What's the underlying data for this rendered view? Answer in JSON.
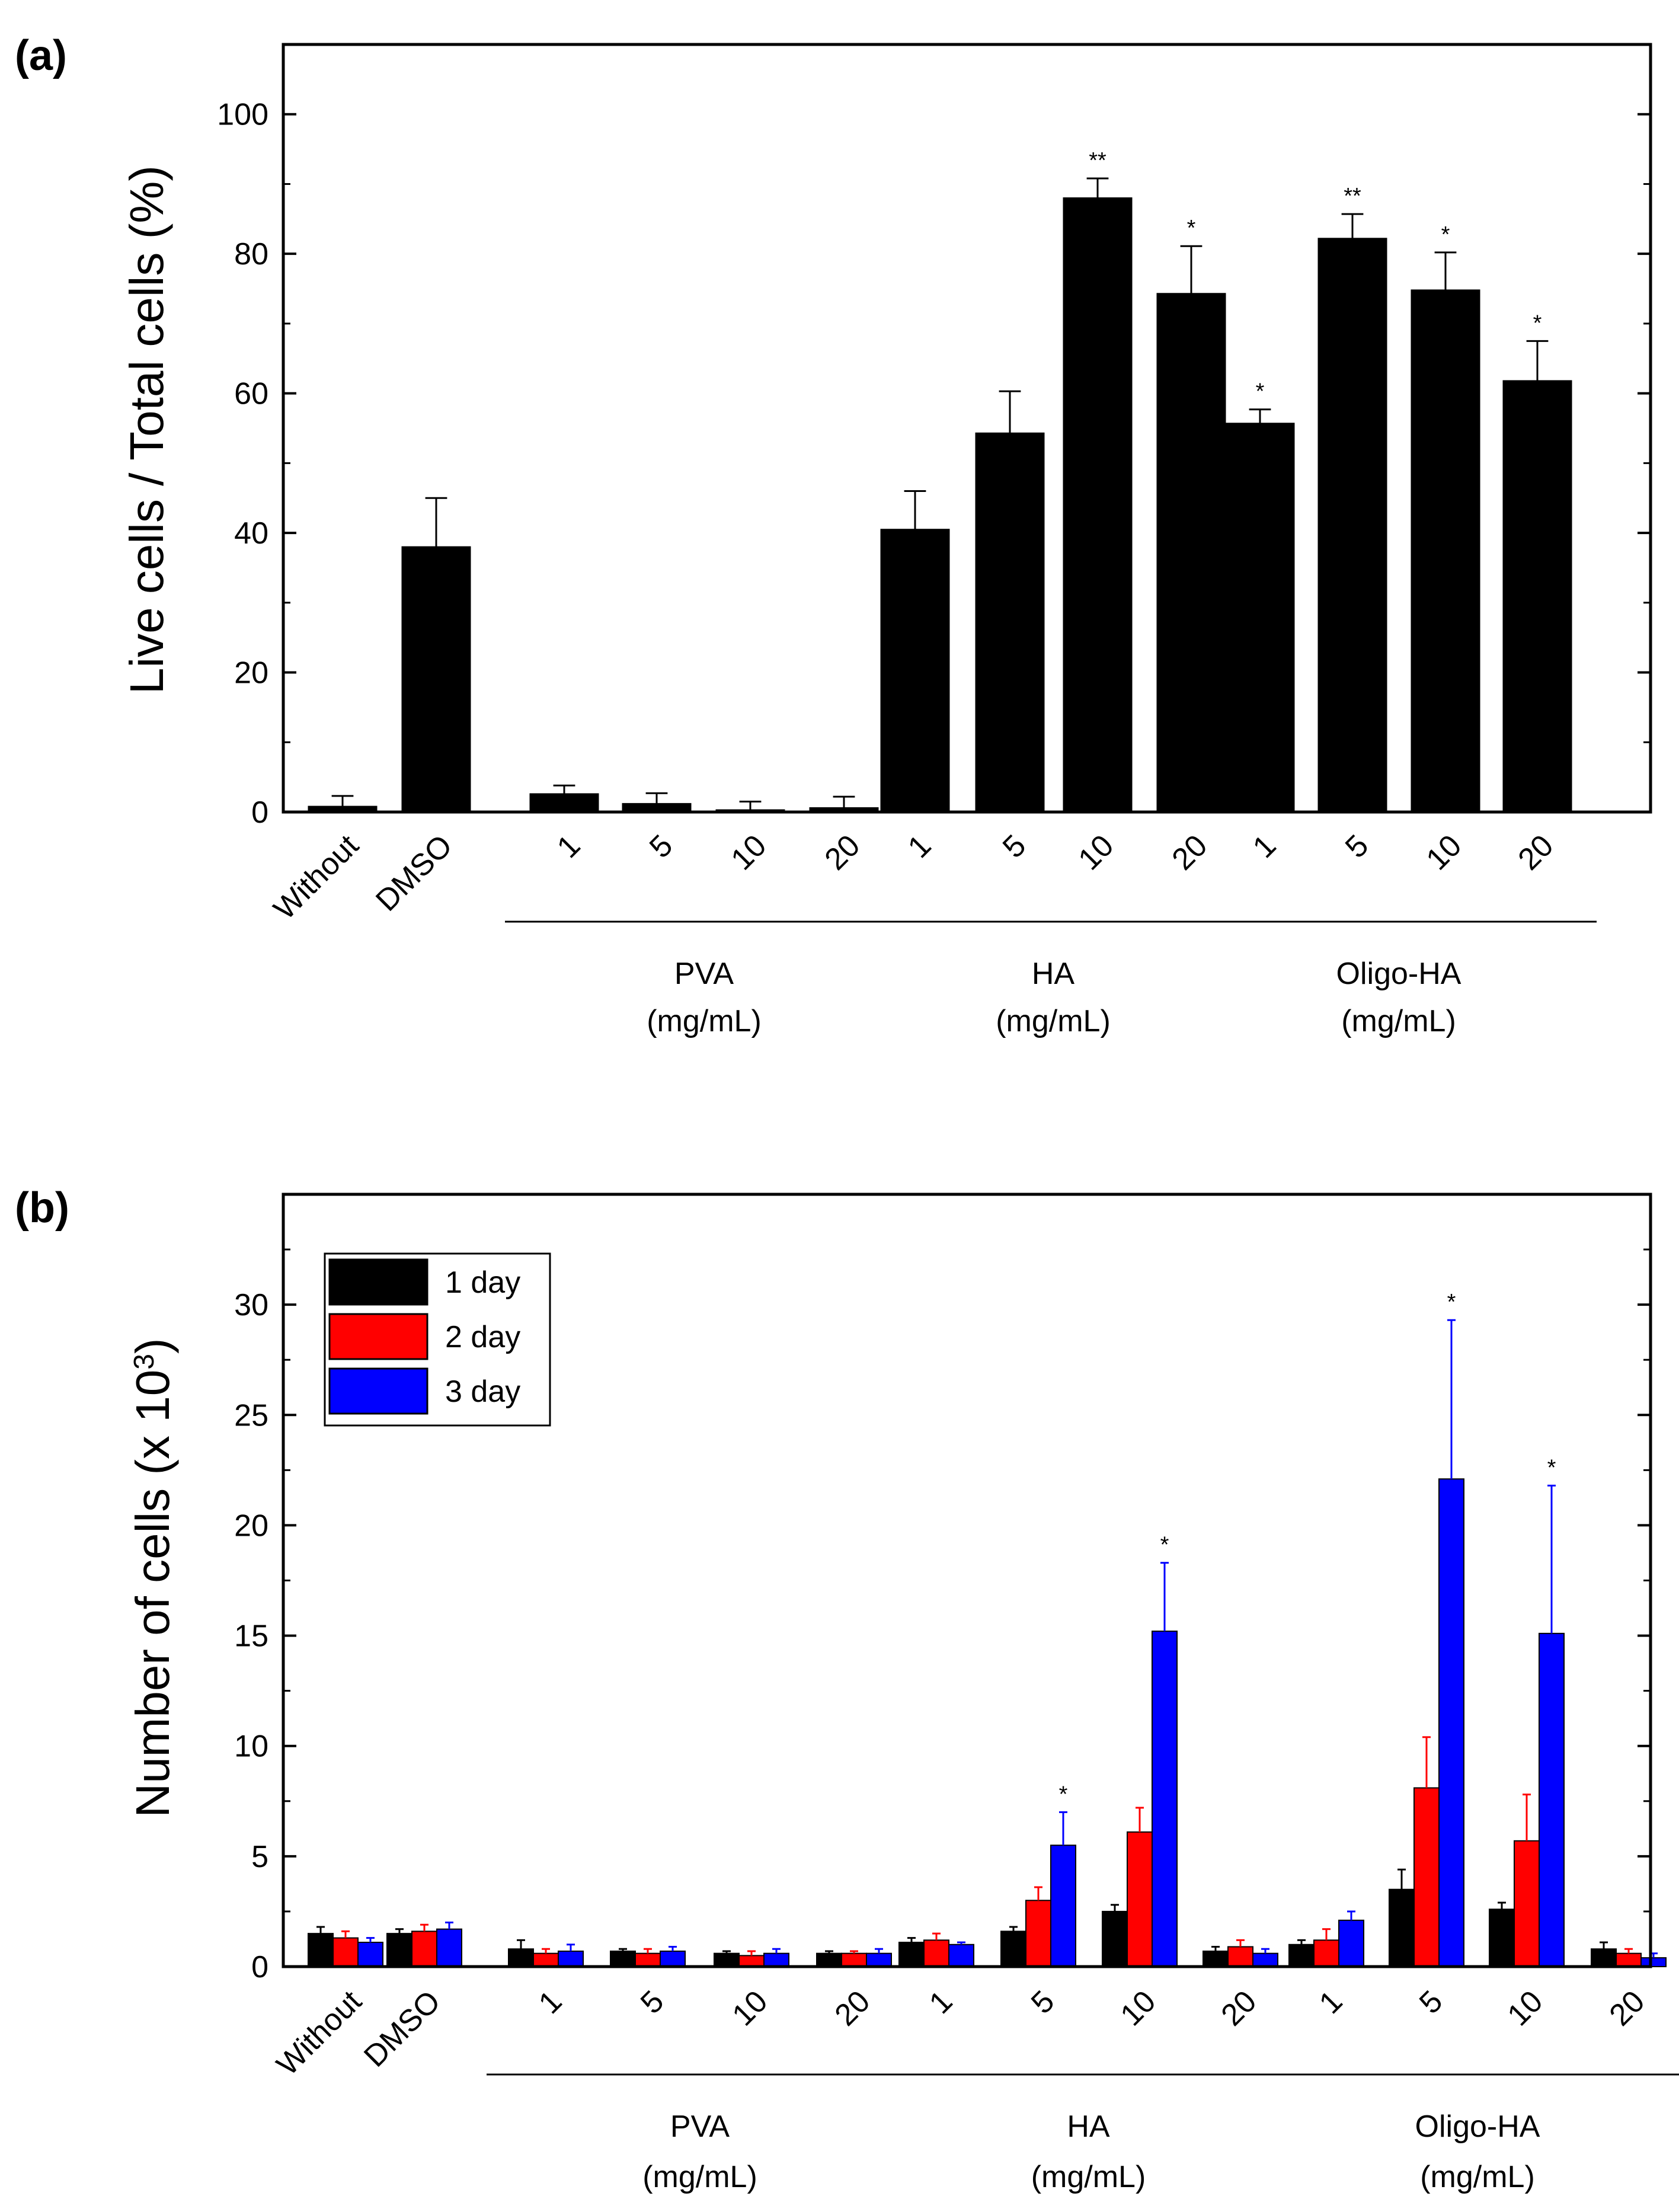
{
  "chart_data": [
    {
      "type": "bar",
      "panel_label": "(a)",
      "ylabel": "Live cells / Total cells (%)",
      "ylim": [
        0,
        110
      ],
      "yticks": [
        0,
        20,
        40,
        60,
        80,
        100
      ],
      "categories": [
        "Without",
        "DMSO",
        "1",
        "5",
        "10",
        "20",
        "1",
        "5",
        "10",
        "20",
        "1",
        "5",
        "10",
        "20"
      ],
      "groups": [
        {
          "name": "PVA",
          "unit": "(mg/mL)",
          "from": 2,
          "to": 5
        },
        {
          "name": "HA",
          "unit": "(mg/mL)",
          "from": 6,
          "to": 9
        },
        {
          "name": "Oligo-HA",
          "unit": "(mg/mL)",
          "from": 10,
          "to": 13
        }
      ],
      "series": [
        {
          "color": "#000000",
          "values": [
            0.8,
            38.0,
            2.6,
            1.2,
            0.3,
            0.6,
            40.5,
            54.3,
            88.0,
            74.3,
            55.7,
            82.2,
            74.8,
            61.8
          ],
          "errors": [
            1.5,
            7.0,
            1.2,
            1.5,
            1.2,
            1.6,
            5.5,
            6.0,
            2.8,
            6.8,
            2.0,
            3.5,
            5.4,
            5.7
          ],
          "annotations": [
            "",
            "",
            "",
            "",
            "",
            "",
            "",
            "",
            "**",
            "*",
            "*",
            "**",
            "*",
            "*"
          ]
        }
      ]
    },
    {
      "type": "bar",
      "panel_label": "(b)",
      "ylabel": "Number of cells (x 10",
      "ylabel_superscript": "3",
      "ylabel_suffix": ")",
      "ylim": [
        0,
        35
      ],
      "yticks": [
        0,
        5,
        10,
        15,
        20,
        25,
        30
      ],
      "categories": [
        "Without",
        "DMSO",
        "1",
        "5",
        "10",
        "20",
        "1",
        "5",
        "10",
        "20",
        "1",
        "5",
        "10",
        "20"
      ],
      "groups": [
        {
          "name": "PVA",
          "unit": "(mg/mL)",
          "from": 2,
          "to": 5
        },
        {
          "name": "HA",
          "unit": "(mg/mL)",
          "from": 6,
          "to": 9
        },
        {
          "name": "Oligo-HA",
          "unit": "(mg/mL)",
          "from": 10,
          "to": 13
        }
      ],
      "legend": {
        "position": "top-left"
      },
      "series": [
        {
          "name": "1 day",
          "color": "#000000",
          "values": [
            1.5,
            1.5,
            0.8,
            0.7,
            0.6,
            0.6,
            1.1,
            1.6,
            2.5,
            0.7,
            1.0,
            3.5,
            2.6,
            0.8
          ],
          "errors": [
            0.3,
            0.2,
            0.4,
            0.1,
            0.1,
            0.1,
            0.2,
            0.2,
            0.3,
            0.2,
            0.2,
            0.9,
            0.3,
            0.3
          ],
          "annotations": [
            "",
            "",
            "",
            "",
            "",
            "",
            "",
            "",
            "",
            "",
            "",
            "",
            "",
            ""
          ]
        },
        {
          "name": "2 day",
          "color": "#ff0000",
          "values": [
            1.3,
            1.6,
            0.6,
            0.6,
            0.5,
            0.6,
            1.2,
            3.0,
            6.1,
            0.9,
            1.2,
            8.1,
            5.7,
            0.6
          ],
          "errors": [
            0.3,
            0.3,
            0.2,
            0.2,
            0.2,
            0.1,
            0.3,
            0.6,
            1.1,
            0.3,
            0.5,
            2.3,
            2.1,
            0.2
          ],
          "annotations": [
            "",
            "",
            "",
            "",
            "",
            "",
            "",
            "",
            "",
            "",
            "",
            "",
            "",
            ""
          ]
        },
        {
          "name": "3 day",
          "color": "#0000ff",
          "values": [
            1.1,
            1.7,
            0.7,
            0.7,
            0.6,
            0.6,
            1.0,
            5.5,
            15.2,
            0.6,
            2.1,
            22.1,
            15.1,
            0.4
          ],
          "errors": [
            0.2,
            0.3,
            0.3,
            0.2,
            0.2,
            0.2,
            0.1,
            1.5,
            3.1,
            0.2,
            0.4,
            7.2,
            6.7,
            0.2
          ],
          "annotations": [
            "",
            "",
            "",
            "",
            "",
            "",
            "",
            "*",
            "*",
            "",
            "",
            "*",
            "*",
            ""
          ]
        }
      ]
    }
  ]
}
